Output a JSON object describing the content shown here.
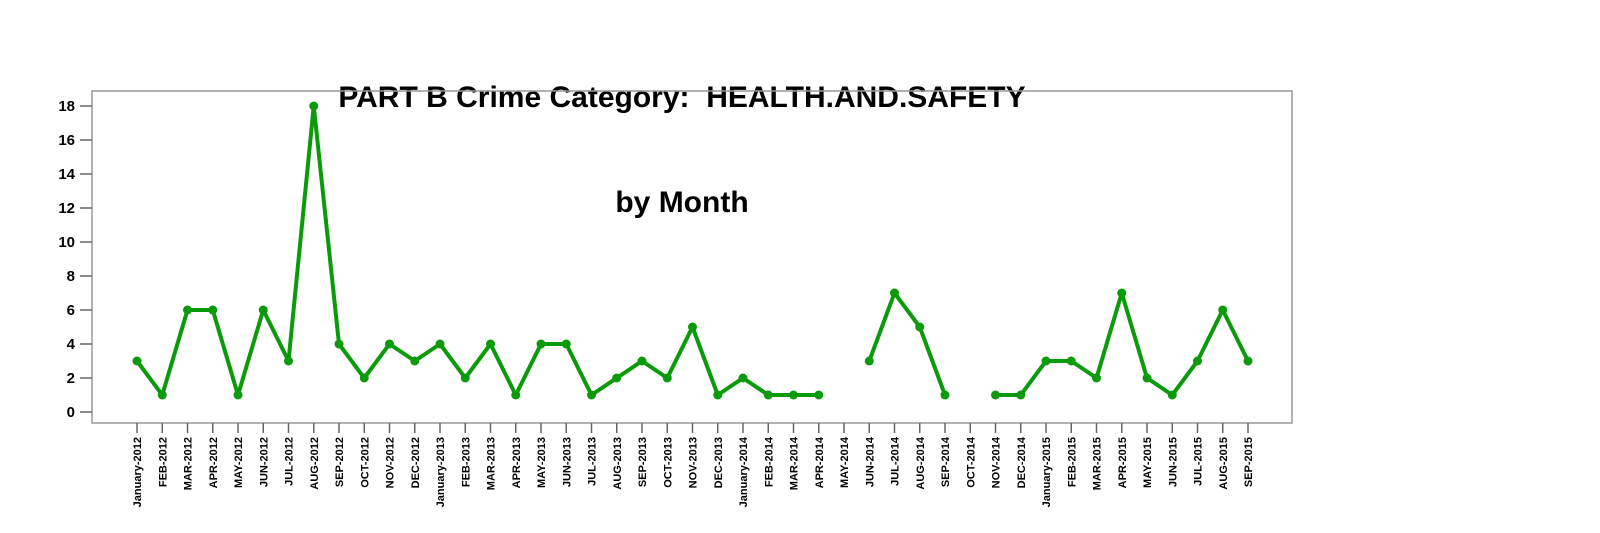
{
  "chart": {
    "title_line1": "PART B Crime Category:  HEALTH.AND.SAFETY",
    "title_line2": "by Month"
  },
  "chart_data": {
    "type": "line",
    "title": "PART B Crime Category:  HEALTH.AND.SAFETY by Month",
    "xlabel": "",
    "ylabel": "",
    "ylim": [
      0,
      18
    ],
    "yticks": [
      0,
      2,
      4,
      6,
      8,
      10,
      12,
      14,
      16,
      18
    ],
    "grid": false,
    "legend_position": "none",
    "line_color": "#0a9a0a",
    "frame_color": "#999999",
    "tick_color": "#666666",
    "missing_points": [
      "MAY-2014",
      "OCT-2014"
    ],
    "categories": [
      "January-2012",
      "FEB-2012",
      "MAR-2012",
      "APR-2012",
      "MAY-2012",
      "JUN-2012",
      "JUL-2012",
      "AUG-2012",
      "SEP-2012",
      "OCT-2012",
      "NOV-2012",
      "DEC-2012",
      "January-2013",
      "FEB-2013",
      "MAR-2013",
      "APR-2013",
      "MAY-2013",
      "JUN-2013",
      "JUL-2013",
      "AUG-2013",
      "SEP-2013",
      "OCT-2013",
      "NOV-2013",
      "DEC-2013",
      "January-2014",
      "FEB-2014",
      "MAR-2014",
      "APR-2014",
      "MAY-2014",
      "JUN-2014",
      "JUL-2014",
      "AUG-2014",
      "SEP-2014",
      "OCT-2014",
      "NOV-2014",
      "DEC-2014",
      "January-2015",
      "FEB-2015",
      "MAR-2015",
      "APR-2015",
      "MAY-2015",
      "JUN-2015",
      "JUL-2015",
      "AUG-2015",
      "SEP-2015"
    ],
    "values": [
      3,
      1,
      6,
      6,
      1,
      6,
      3,
      18,
      4,
      2,
      4,
      3,
      4,
      2,
      4,
      1,
      4,
      4,
      1,
      2,
      3,
      2,
      5,
      1,
      2,
      1,
      1,
      1,
      null,
      3,
      7,
      5,
      1,
      null,
      1,
      1,
      3,
      3,
      2,
      7,
      2,
      1,
      3,
      6,
      3
    ]
  }
}
